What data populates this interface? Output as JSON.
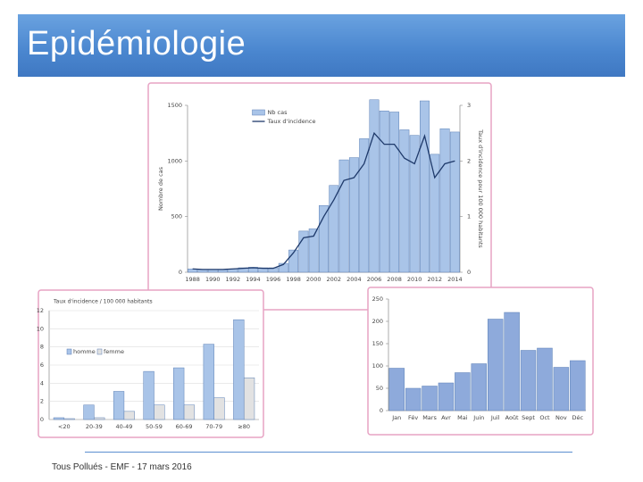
{
  "header": {
    "title": "Epidémiologie"
  },
  "chart_data": [
    {
      "type": "bar",
      "ylabel": "Nombre de cas",
      "y2label": "Taux d'incidence pour 100 000 habitants",
      "categories": [
        "1988",
        null,
        "1990",
        null,
        "1992",
        null,
        "1994",
        null,
        "1996",
        null,
        "1998",
        null,
        "2000",
        null,
        "2002",
        null,
        "2004",
        null,
        "2006",
        null,
        "2008",
        null,
        "2010",
        null,
        "2012",
        null,
        "2014"
      ],
      "series": [
        {
          "name": "Nb cas",
          "color": "#a9c4e8",
          "type": "bar",
          "values": [
            30,
            25,
            25,
            25,
            30,
            40,
            45,
            40,
            40,
            80,
            200,
            370,
            390,
            600,
            780,
            1010,
            1030,
            1200,
            1550,
            1450,
            1440,
            1280,
            1230,
            1540,
            1060,
            1290,
            1260
          ]
        },
        {
          "name": "Taux d'incidence",
          "color": "#1f3a6b",
          "type": "line",
          "axis": "y2",
          "values": [
            0.06,
            0.05,
            0.05,
            0.05,
            0.06,
            0.07,
            0.08,
            0.07,
            0.07,
            0.14,
            0.35,
            0.62,
            0.65,
            1.0,
            1.3,
            1.65,
            1.7,
            1.95,
            2.5,
            2.3,
            2.3,
            2.05,
            1.95,
            2.45,
            1.7,
            1.95,
            2.0
          ]
        }
      ],
      "ylim": [
        0,
        1500
      ],
      "yticks": [
        0,
        500,
        1000,
        1500
      ],
      "y2lim": [
        0,
        3
      ],
      "y2ticks": [
        0,
        1,
        2,
        3
      ],
      "grid": false,
      "legend": "upper center"
    },
    {
      "type": "bar",
      "title": "Taux d'incidence / 100 000 habitants",
      "categories": [
        "<20",
        "20-39",
        "40-49",
        "50-59",
        "60-69",
        "70-79",
        "≥80"
      ],
      "series": [
        {
          "name": "homme",
          "color": "#a9c4e8",
          "type": "bar",
          "values": [
            0.2,
            1.6,
            3.1,
            5.3,
            5.7,
            8.3,
            11
          ]
        },
        {
          "name": "femme",
          "color": "#e2e2e2",
          "type": "bar",
          "values": [
            0.1,
            0.2,
            0.9,
            1.6,
            1.6,
            2.4,
            4.6
          ]
        }
      ],
      "ylim": [
        0,
        12
      ],
      "yticks": [
        0,
        2,
        4,
        6,
        8,
        10,
        12
      ],
      "grid": true,
      "legend": "center left"
    },
    {
      "type": "bar",
      "categories": [
        "Jan",
        "Fév",
        "Mars",
        "Avr",
        "Mai",
        "Juin",
        "Juil",
        "Août",
        "Sept",
        "Oct",
        "Nov",
        "Déc"
      ],
      "values": [
        95,
        50,
        55,
        62,
        85,
        105,
        205,
        220,
        135,
        140,
        97,
        112
      ],
      "color": "#8eaadb",
      "ylim": [
        0,
        250
      ],
      "yticks": [
        0,
        50,
        100,
        150,
        200,
        250
      ],
      "grid": false
    }
  ],
  "footer": {
    "text": "Tous Pollués - EMF - 17 mars 2016"
  }
}
